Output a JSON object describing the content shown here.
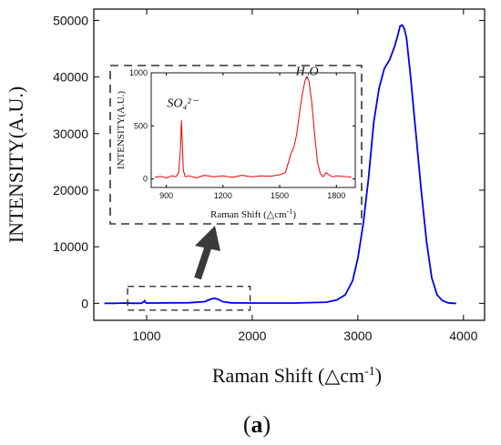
{
  "chart_data": [
    {
      "type": "line",
      "role": "main",
      "xlabel_main": "Raman Shift (",
      "xlabel_unit": "△cm",
      "xlabel_exp": "-1",
      "xlabel_close": ")",
      "ylabel": "INTENSITY(A.U.)",
      "xlim": [
        500,
        4200
      ],
      "ylim": [
        -3000,
        52000
      ],
      "xticks": [
        1000,
        2000,
        3000,
        4000
      ],
      "xtick_labels": [
        "1000",
        "2000",
        "3000",
        "4000"
      ],
      "yticks": [
        0,
        10000,
        20000,
        30000,
        40000,
        50000
      ],
      "ytick_labels": [
        "0",
        "10000",
        "20000",
        "30000",
        "40000",
        "50000"
      ],
      "series": [
        {
          "color": "#0000ee",
          "x": [
            600,
            700,
            800,
            880,
            950,
            975,
            980,
            985,
            995,
            1050,
            1200,
            1400,
            1550,
            1600,
            1640,
            1680,
            1720,
            1800,
            2000,
            2400,
            2700,
            2800,
            2880,
            2950,
            3000,
            3050,
            3100,
            3150,
            3200,
            3250,
            3300,
            3350,
            3380,
            3400,
            3420,
            3440,
            3460,
            3500,
            3550,
            3600,
            3650,
            3700,
            3750,
            3800,
            3850,
            3900,
            3930
          ],
          "y": [
            0,
            0,
            50,
            0,
            20,
            300,
            500,
            300,
            50,
            50,
            80,
            100,
            300,
            700,
            900,
            700,
            300,
            80,
            50,
            60,
            200,
            600,
            1500,
            4000,
            8000,
            14000,
            22000,
            32000,
            38000,
            41500,
            43000,
            45500,
            47500,
            49000,
            49200,
            48500,
            47000,
            40000,
            30000,
            20000,
            11000,
            4500,
            1500,
            500,
            100,
            0,
            0
          ]
        }
      ],
      "zoom_box_x": [
        820,
        1980
      ],
      "zoom_box_y": [
        -1200,
        3000
      ]
    },
    {
      "type": "line",
      "role": "inset",
      "xlabel_main": "Raman Shift (",
      "xlabel_unit": "△cm",
      "xlabel_exp": "-1",
      "xlabel_close": ")",
      "ylabel": "INTENSITY(A.U.)",
      "xlim": [
        820,
        1900
      ],
      "ylim": [
        -80,
        1000
      ],
      "xticks": [
        900,
        1200,
        1500,
        1800
      ],
      "xtick_labels": [
        "900",
        "1200",
        "1500",
        "1800"
      ],
      "yticks": [
        0,
        500,
        1000
      ],
      "ytick_labels": [
        "0",
        "500",
        "1000"
      ],
      "annotations": [
        {
          "text": "SO₄²⁻",
          "x": 985,
          "y": 680
        },
        {
          "text": "H₂O",
          "x": 1645,
          "y": 980
        }
      ],
      "series": [
        {
          "color": "#ee0000",
          "x": [
            840,
            870,
            900,
            930,
            950,
            965,
            975,
            980,
            985,
            990,
            1000,
            1020,
            1060,
            1100,
            1150,
            1200,
            1250,
            1300,
            1350,
            1400,
            1450,
            1500,
            1530,
            1545,
            1560,
            1575,
            1590,
            1605,
            1620,
            1635,
            1645,
            1655,
            1670,
            1685,
            1700,
            1715,
            1730,
            1745,
            1760,
            1780,
            1800,
            1830,
            1860,
            1880
          ],
          "y": [
            15,
            25,
            10,
            30,
            20,
            60,
            280,
            550,
            330,
            80,
            20,
            30,
            10,
            35,
            20,
            30,
            15,
            35,
            20,
            30,
            25,
            40,
            60,
            150,
            240,
            300,
            420,
            620,
            800,
            930,
            960,
            920,
            720,
            420,
            160,
            50,
            20,
            60,
            40,
            20,
            30,
            25,
            20,
            15
          ]
        }
      ]
    }
  ],
  "panel_label": "a"
}
